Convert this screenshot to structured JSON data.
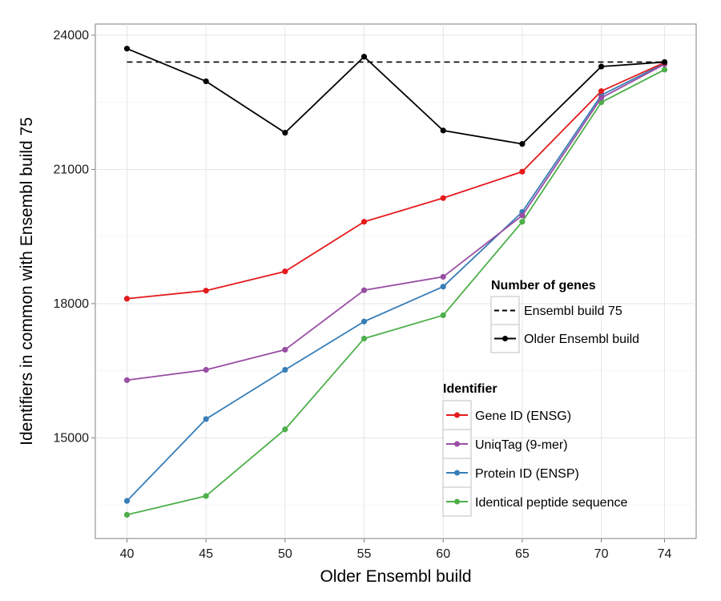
{
  "chart_data": {
    "type": "line",
    "xlabel": "Older Ensembl build",
    "ylabel": "Identifiers in common with Ensembl build 75",
    "x": [
      40,
      45,
      50,
      55,
      60,
      65,
      70,
      74
    ],
    "x_tick_labels": [
      "40",
      "45",
      "50",
      "55",
      "60",
      "65",
      "70",
      "74"
    ],
    "y_ticks": [
      15000,
      18000,
      21000,
      24000
    ],
    "y_tick_labels": [
      "15000",
      "18000",
      "21000",
      "24000"
    ],
    "ylim": [
      12750,
      24250
    ],
    "grid": true,
    "reference_line": {
      "name": "Ensembl build 75",
      "value": 23400,
      "style": "dashed",
      "color": "#000000"
    },
    "series": [
      {
        "name": "Older Ensembl build",
        "group": "genes",
        "color": "#000000",
        "values": [
          23700,
          22970,
          21820,
          23520,
          21870,
          21570,
          23300,
          23400
        ]
      },
      {
        "name": "Gene ID (ENSG)",
        "group": "identifier",
        "color": "#e41a1c",
        "values": [
          18110,
          18290,
          18720,
          19830,
          20360,
          20950,
          22750,
          23390
        ]
      },
      {
        "name": "UniqTag (9-mer)",
        "group": "identifier",
        "color": "#984ea3",
        "values": [
          16290,
          16520,
          16970,
          18300,
          18600,
          19970,
          22600,
          23350
        ]
      },
      {
        "name": "Protein ID (ENSP)",
        "group": "identifier",
        "color": "#377eb8",
        "values": [
          13590,
          15420,
          16520,
          17600,
          18380,
          20050,
          22660,
          23370
        ]
      },
      {
        "name": "Identical peptide sequence",
        "group": "identifier",
        "color": "#4daf4a",
        "values": [
          13280,
          13700,
          15190,
          17220,
          17740,
          19830,
          22500,
          23230
        ]
      }
    ],
    "legends": [
      {
        "title": "Number of genes",
        "position": "middle-right",
        "entries": [
          {
            "label": "Ensembl build 75",
            "style": "dashed",
            "color": "#000000"
          },
          {
            "label": "Older Ensembl build",
            "style": "solid-point",
            "color": "#000000"
          }
        ]
      },
      {
        "title": "Identifier",
        "position": "bottom-right",
        "entries": [
          {
            "label": "Gene ID (ENSG)",
            "style": "solid-point",
            "color": "#e41a1c"
          },
          {
            "label": "UniqTag (9-mer)",
            "style": "solid-point",
            "color": "#984ea3"
          },
          {
            "label": "Protein ID (ENSP)",
            "style": "solid-point",
            "color": "#377eb8"
          },
          {
            "label": "Identical peptide sequence",
            "style": "solid-point",
            "color": "#4daf4a"
          }
        ]
      }
    ]
  }
}
